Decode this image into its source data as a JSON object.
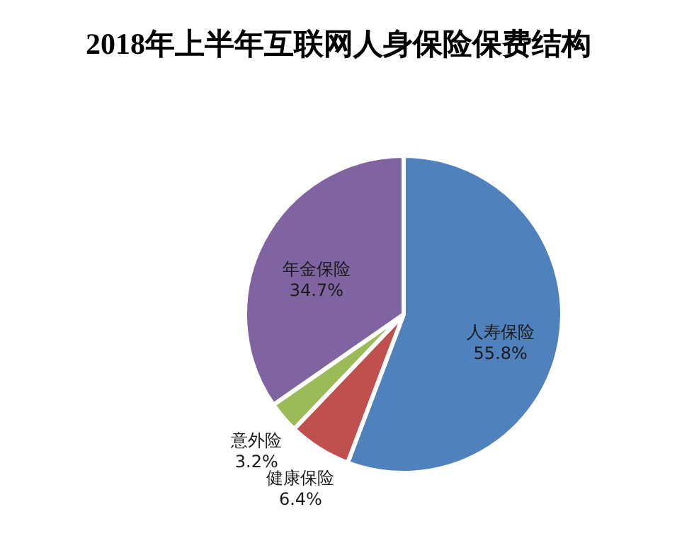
{
  "chart_data": {
    "type": "pie",
    "title": "2018年上半年互联网人身保险保费结构",
    "categories": [
      "人寿保险",
      "健康保险",
      "意外险",
      "年金保险"
    ],
    "values": [
      55.8,
      6.4,
      3.2,
      34.7
    ],
    "colors": [
      "#4f81bd",
      "#c0504d",
      "#9bbb59",
      "#8064a2"
    ],
    "value_labels": [
      "55.8%",
      "6.4%",
      "3.2%",
      "34.7%"
    ]
  }
}
